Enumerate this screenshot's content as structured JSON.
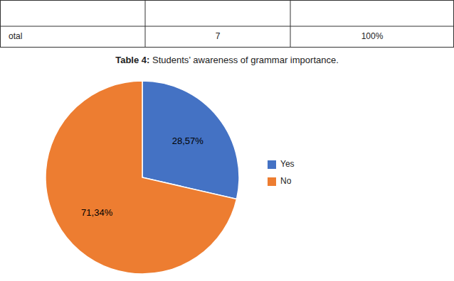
{
  "chart_data": {
    "type": "pie",
    "title": "Table 4: Students’ awareness of grammar importance.",
    "annotations": [
      "otal",
      "7",
      "100%"
    ],
    "categories": [
      "Yes",
      "No"
    ],
    "values": [
      28.57,
      71.34
    ],
    "value_labels": [
      "28,57%",
      "71,34%"
    ],
    "colors": [
      "#4472C4",
      "#ED7D31"
    ],
    "data_labels": true,
    "legend": "right"
  }
}
